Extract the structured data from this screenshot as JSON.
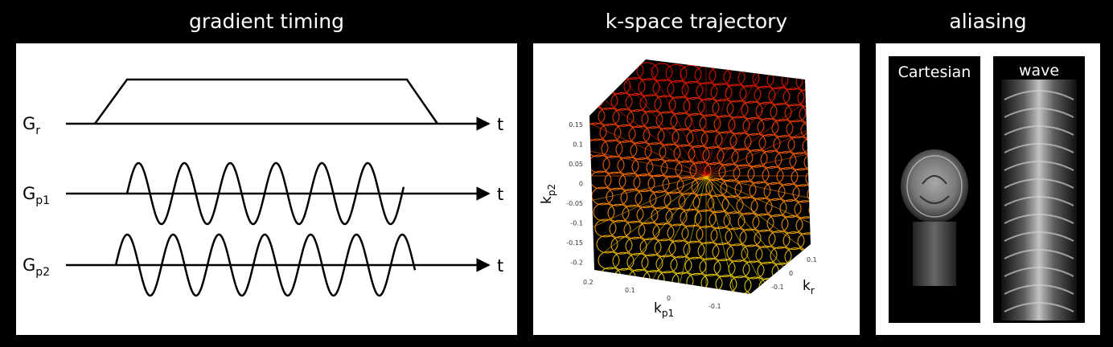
{
  "titles": {
    "gradient": "gradient timing",
    "kspace": "k-space trajectory",
    "aliasing": "aliasing"
  },
  "gradient": {
    "axis_end": "t",
    "channels": [
      {
        "base": "G",
        "sub": "r"
      },
      {
        "base": "G",
        "sub": "p1"
      },
      {
        "base": "G",
        "sub": "p2"
      }
    ]
  },
  "kspace": {
    "x_base": "k",
    "x_sub": "p1",
    "y_base": "k",
    "y_sub": "p2",
    "z_base": "k",
    "z_sub": "r",
    "y_ticks": [
      "0.15",
      "0.1",
      "0.05",
      "0",
      "-0.05",
      "-0.1",
      "-0.15",
      "-0.2"
    ],
    "x_ticks": [
      "0.2",
      "0.1",
      "0",
      "-0.1"
    ],
    "z_ticks": [
      "0.1",
      "0",
      "-0.1"
    ],
    "colors": {
      "top": "#e00000",
      "mid": "#ff7000",
      "bottom": "#e8e000"
    }
  },
  "aliasing": {
    "left_label": "Cartesian",
    "right_label": "wave"
  }
}
